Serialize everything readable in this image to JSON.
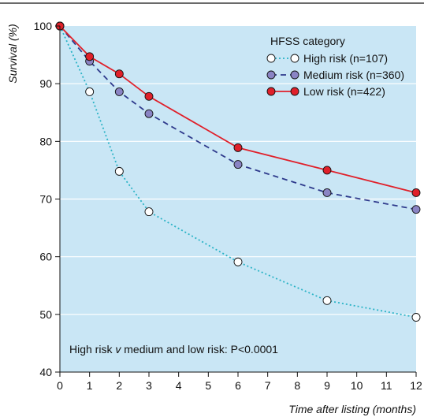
{
  "chart_data": {
    "type": "line",
    "title": "",
    "xlabel": "Time after listing (months)",
    "ylabel": "Survival (%)",
    "xlim": [
      0,
      12
    ],
    "ylim": [
      40,
      100
    ],
    "x_ticks": [
      0,
      1,
      2,
      3,
      4,
      5,
      6,
      7,
      8,
      9,
      10,
      11,
      12
    ],
    "y_ticks": [
      40,
      50,
      60,
      70,
      80,
      90,
      100
    ],
    "grid": "horizontal",
    "background_color": "#c9e6f5",
    "legend": {
      "title": "HFSS category",
      "placement": "top-right"
    },
    "annotation": {
      "prefix": "High risk ",
      "italic": "v",
      "suffix": " medium and low risk: P<0.0001"
    },
    "series": [
      {
        "name": "High risk (n=107)",
        "line_color": "#2ab3c6",
        "marker_fill": "#ffffff",
        "dash": "dotted",
        "x": [
          0,
          1,
          2,
          3,
          6,
          9,
          12
        ],
        "y": [
          100,
          88.6,
          74.8,
          67.8,
          59.1,
          52.4,
          49.5
        ]
      },
      {
        "name": "Medium risk (n=360)",
        "line_color": "#2e3a8c",
        "marker_fill": "#8a84c4",
        "dash": "dashed",
        "x": [
          0,
          1,
          2,
          3,
          6,
          9,
          12
        ],
        "y": [
          100,
          93.9,
          88.6,
          84.8,
          76.0,
          71.1,
          68.2
        ]
      },
      {
        "name": "Low risk (n=422)",
        "line_color": "#e0202a",
        "marker_fill": "#e0202a",
        "dash": "solid",
        "x": [
          0,
          1,
          2,
          3,
          6,
          9,
          12
        ],
        "y": [
          100,
          94.7,
          91.7,
          87.8,
          78.9,
          75.0,
          71.1
        ]
      }
    ]
  }
}
